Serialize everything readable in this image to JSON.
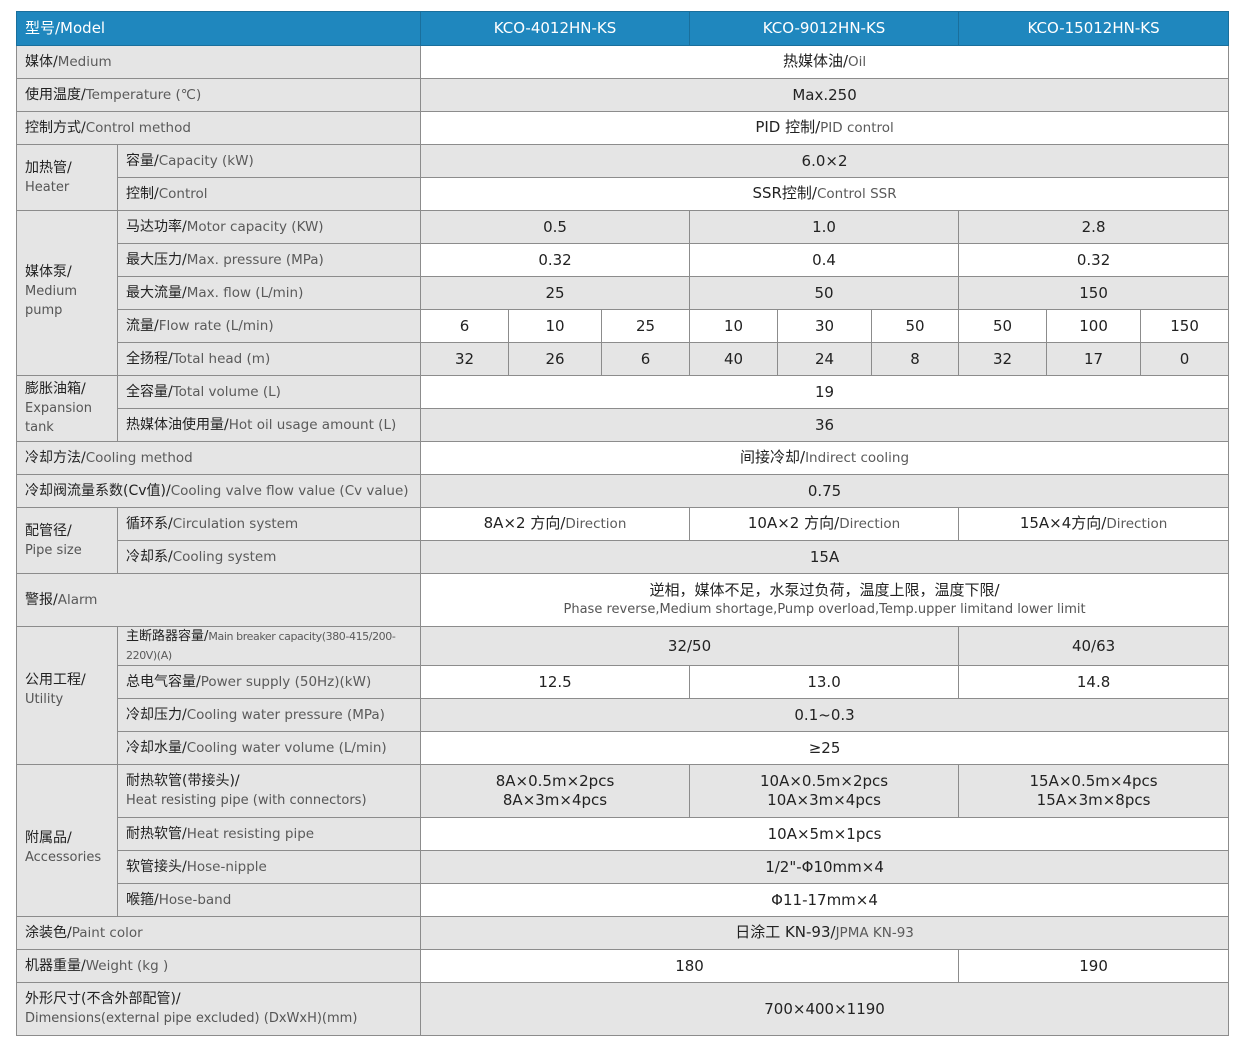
{
  "header": {
    "label": "型号/Model",
    "models": [
      "KCO-4012HN-KS",
      "KCO-9012HN-KS",
      "KCO-15012HN-KS"
    ]
  },
  "medium": {
    "zh": "媒体/",
    "en": "Medium",
    "value_zh": "热媒体油/",
    "value_en": "Oil"
  },
  "temperature": {
    "zh": "使用温度/",
    "en": "Temperature (℃)",
    "value": "Max.250"
  },
  "control_method": {
    "zh": "控制方式/",
    "en": "Control method",
    "value_zh": "PID 控制/",
    "value_en": "PID control"
  },
  "heater": {
    "zh": "加热管/",
    "en": "Heater",
    "capacity": {
      "zh": "容量/",
      "en": "Capacity (kW)",
      "value": "6.0×2"
    },
    "control": {
      "zh": "控制/",
      "en": "Control",
      "value_zh": "SSR控制/",
      "value_en": "Control  SSR"
    }
  },
  "pump": {
    "zh": "媒体泵/",
    "en": "Medium pump",
    "motor": {
      "zh": "马达功率/",
      "en": "Motor capacity (KW)",
      "values": [
        "0.5",
        "1.0",
        "2.8"
      ]
    },
    "pressure": {
      "zh": "最大压力/",
      "en": "Max. pressure (MPa)",
      "values": [
        "0.32",
        "0.4",
        "0.32"
      ]
    },
    "flow": {
      "zh": "最大流量/",
      "en": "Max. flow (L/min)",
      "values": [
        "25",
        "50",
        "150"
      ]
    },
    "flow_rate": {
      "zh": "流量/",
      "en": "Flow rate (L/min)",
      "values": [
        "6",
        "10",
        "25",
        "10",
        "30",
        "50",
        "50",
        "100",
        "150"
      ]
    },
    "head": {
      "zh": "全扬程/",
      "en": "Total head (m)",
      "values": [
        "32",
        "26",
        "6",
        "40",
        "24",
        "8",
        "32",
        "17",
        "0"
      ]
    }
  },
  "tank": {
    "zh": "膨胀油箱/",
    "en": "Expansion tank",
    "volume": {
      "zh": "全容量/",
      "en": "Total volume (L)",
      "value": "19"
    },
    "oil": {
      "zh": "热媒体油使用量/",
      "en": "Hot oil usage amount (L)",
      "value": "36"
    }
  },
  "cooling_method": {
    "zh": "冷却方法/",
    "en": "Cooling method",
    "value_zh": "间接冷却/",
    "value_en": "Indirect cooling"
  },
  "cv": {
    "zh": "冷却阀流量系数(Cv值)/",
    "en": "Cooling valve flow value (Cv value)",
    "value": "0.75"
  },
  "pipe": {
    "zh": "配管径/",
    "en": "Pipe size",
    "circulation": {
      "zh": "循环系/",
      "en": "Circulation system",
      "values": [
        {
          "zh": "8A×2 方向/",
          "en": "Direction"
        },
        {
          "zh": "10A×2 方向/",
          "en": "Direction"
        },
        {
          "zh": "15A×4方向/",
          "en": "Direction"
        }
      ]
    },
    "cooling": {
      "zh": "冷却系/",
      "en": "Cooling system",
      "value": "15A"
    }
  },
  "alarm": {
    "zh": "警报/",
    "en": "Alarm",
    "value_zh": "逆相，媒体不足，水泵过负荷，温度上限，温度下限/",
    "value_en": "Phase reverse,Medium shortage,Pump overload,Temp.upper limitand lower limit"
  },
  "utility": {
    "zh": "公用工程/",
    "en": "Utility",
    "breaker": {
      "zh": "主断路器容量/",
      "en": "Main breaker capacity(380-415/200-220V)(A)",
      "values": [
        "32/50",
        "40/63"
      ]
    },
    "power": {
      "zh": "总电气容量/",
      "en": "Power supply (50Hz)(kW)",
      "values": [
        "12.5",
        "13.0",
        "14.8"
      ]
    },
    "water_pressure": {
      "zh": "冷却压力/",
      "en": "Cooling water pressure (MPa)",
      "value": "0.1~0.3"
    },
    "water_volume": {
      "zh": "冷却水量/",
      "en": "Cooling water volume (L/min)",
      "value": "≥25"
    }
  },
  "accessories": {
    "zh": "附属品/",
    "en": "Accessories",
    "pipe_conn": {
      "zh": "耐热软管(带接头)/",
      "en": "Heat resisting pipe (with connectors)",
      "values": [
        [
          "8A×0.5m×2pcs",
          "8A×3m×4pcs"
        ],
        [
          "10A×0.5m×2pcs",
          "10A×3m×4pcs"
        ],
        [
          "15A×0.5m×4pcs",
          "15A×3m×8pcs"
        ]
      ]
    },
    "pipe": {
      "zh": "耐热软管/",
      "en": "Heat resisting pipe",
      "value": "10A×5m×1pcs"
    },
    "nipple": {
      "zh": "软管接头/",
      "en": "Hose-nipple",
      "value": "1/2\"-Φ10mm×4"
    },
    "band": {
      "zh": "喉箍/",
      "en": "Hose-band",
      "value": "Φ11-17mm×4"
    }
  },
  "paint": {
    "zh": "涂装色/",
    "en": "Paint color",
    "value_zh": "日涂工 KN-93/",
    "value_en": "JPMA KN-93"
  },
  "weight": {
    "zh": "机器重量/",
    "en": "Weight (kg )",
    "values": [
      "180",
      "190"
    ]
  },
  "dimensions": {
    "zh": "外形尺寸(不含外部配管)/",
    "en": "Dimensions(external pipe excluded) (DxWxH)(mm)",
    "value": "700×400×1190"
  }
}
